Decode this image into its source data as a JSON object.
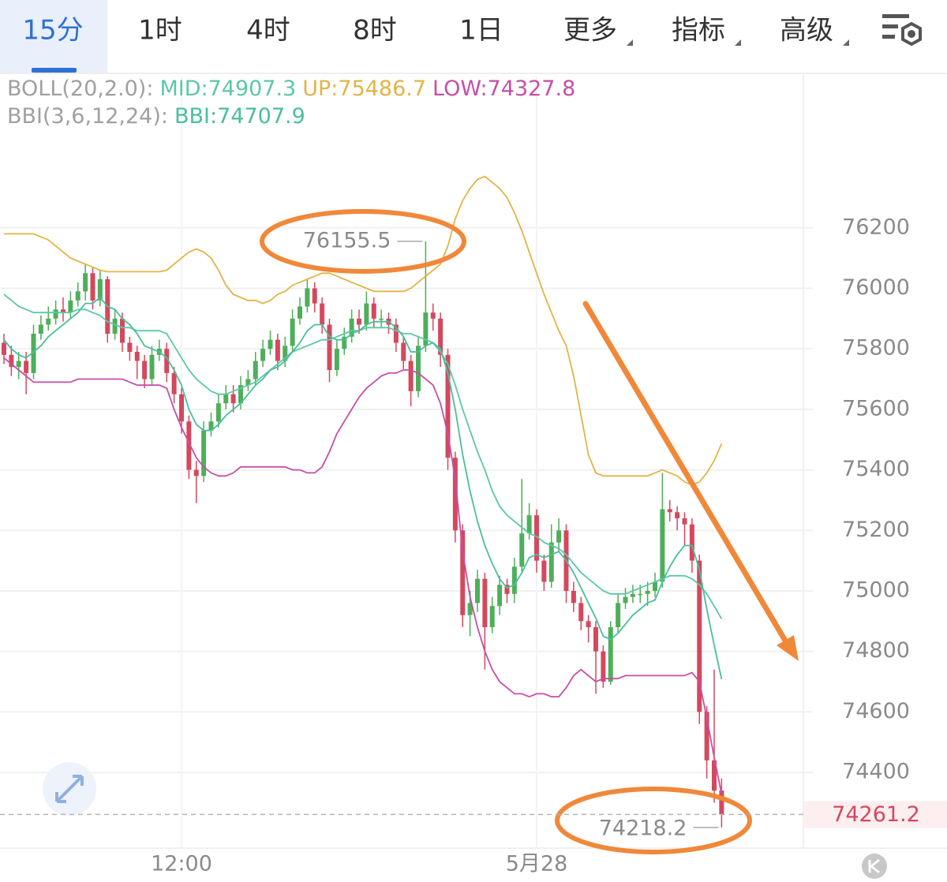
{
  "tabs": [
    "15分",
    "1时",
    "4时",
    "8时",
    "1日",
    "更多",
    "指标",
    "高级"
  ],
  "indicators": {
    "boll": {
      "label": "BOLL(20,2.0):",
      "mid": "MID:74907.3",
      "up": "UP:75486.7",
      "low": "LOW:74327.8"
    },
    "bbi": {
      "label": "BBI(3,6,12,24):",
      "value": "BBI:74707.9"
    }
  },
  "chart_data": {
    "type": "candlestick",
    "categories": [
      null,
      null,
      null,
      null,
      null,
      null,
      null,
      null,
      null,
      null,
      null,
      null,
      null,
      null,
      null,
      null,
      null,
      null,
      null,
      null,
      null,
      null,
      null,
      null,
      "12:00",
      null,
      null,
      null,
      null,
      null,
      null,
      null,
      null,
      null,
      null,
      null,
      null,
      null,
      null,
      null,
      null,
      null,
      null,
      null,
      null,
      null,
      null,
      null,
      null,
      null,
      null,
      null,
      null,
      null,
      null,
      null,
      null,
      null,
      null,
      null,
      null,
      null,
      null,
      null,
      null,
      null,
      null,
      null,
      null,
      null,
      null,
      null,
      "5月28",
      null,
      null,
      null,
      null,
      null,
      null,
      null,
      null,
      null,
      null,
      null,
      null,
      null,
      null,
      null,
      null,
      null,
      null,
      null,
      null,
      null,
      null,
      null,
      null,
      null
    ],
    "open": [
      75820,
      75780,
      75740,
      75760,
      75720,
      75850,
      75880,
      75900,
      75930,
      75920,
      75960,
      75990,
      76050,
      75960,
      76030,
      75850,
      75900,
      75820,
      75790,
      75760,
      75700,
      75780,
      75800,
      75720,
      75650,
      75560,
      75400,
      75380,
      75530,
      75560,
      75620,
      75650,
      75620,
      75680,
      75700,
      75760,
      75800,
      75830,
      75760,
      75810,
      75900,
      75940,
      76000,
      75950,
      75880,
      75730,
      75800,
      75840,
      75900,
      75880,
      75950,
      75900,
      75900,
      75880,
      75820,
      75760,
      75660,
      75810,
      75920,
      75900,
      75780,
      75440,
      75200,
      74920,
      74960,
      75040,
      74880,
      74950,
      75020,
      74990,
      75080,
      75190,
      75250,
      75100,
      75030,
      75160,
      75200,
      75000,
      74960,
      74900,
      74880,
      74800,
      74700,
      74880,
      74960,
      74980,
      74990,
      74990,
      75000,
      75030,
      75270,
      75260,
      75240,
      75220,
      75100,
      74600,
      74440,
      74340
    ],
    "high": [
      75850,
      75810,
      75790,
      75790,
      75880,
      75910,
      75940,
      75960,
      75970,
      75990,
      76020,
      76080,
      76070,
      76060,
      76040,
      75930,
      75920,
      75840,
      75810,
      75780,
      75810,
      75830,
      75820,
      75740,
      75670,
      75580,
      75430,
      75560,
      75590,
      75650,
      75680,
      75680,
      75710,
      75730,
      75790,
      75830,
      75860,
      75850,
      75840,
      75930,
      75970,
      76030,
      76020,
      75970,
      75900,
      75830,
      75870,
      75930,
      75930,
      75990,
      75970,
      75930,
      75920,
      75900,
      75840,
      75780,
      75840,
      76155.5,
      75950,
      75920,
      75800,
      75460,
      75220,
      75000,
      75070,
      75060,
      74980,
      75050,
      75040,
      75110,
      75370,
      75290,
      75270,
      75120,
      75220,
      75240,
      75220,
      75030,
      74980,
      74920,
      74900,
      74820,
      74900,
      74990,
      75010,
      75020,
      75020,
      75030,
      75060,
      75390,
      75300,
      75280,
      75260,
      75240,
      75120,
      74620,
      74740,
      74380
    ],
    "low": [
      75750,
      75710,
      75700,
      75650,
      75700,
      75830,
      75860,
      75880,
      75890,
      75900,
      75940,
      75960,
      75930,
      75940,
      75820,
      75830,
      75790,
      75760,
      75700,
      75670,
      75680,
      75760,
      75690,
      75620,
      75520,
      75370,
      75290,
      75360,
      75510,
      75540,
      75600,
      75590,
      75600,
      75660,
      75680,
      75740,
      75780,
      75730,
      75740,
      75790,
      75880,
      75920,
      75920,
      75850,
      75690,
      75710,
      75780,
      75820,
      75850,
      75860,
      75870,
      75870,
      75850,
      75790,
      75730,
      75610,
      75640,
      75790,
      75860,
      75740,
      75400,
      75160,
      74880,
      74850,
      74930,
      74740,
      74860,
      74920,
      74960,
      74960,
      75060,
      75170,
      75060,
      75000,
      75010,
      75130,
      74960,
      74930,
      74870,
      74830,
      74660,
      74680,
      74690,
      74860,
      74940,
      74960,
      74960,
      74950,
      74980,
      75010,
      75230,
      75200,
      75150,
      75060,
      74560,
      74380,
      74300,
      74218.2
    ],
    "close": [
      75780,
      75740,
      75760,
      75720,
      75850,
      75880,
      75900,
      75930,
      75920,
      75960,
      75990,
      76050,
      75960,
      76030,
      75850,
      75900,
      75820,
      75790,
      75760,
      75700,
      75780,
      75800,
      75720,
      75650,
      75560,
      75400,
      75380,
      75530,
      75560,
      75620,
      75650,
      75620,
      75680,
      75700,
      75760,
      75800,
      75830,
      75760,
      75810,
      75900,
      75940,
      76000,
      75950,
      75880,
      75730,
      75800,
      75840,
      75900,
      75880,
      75950,
      75900,
      75900,
      75880,
      75820,
      75760,
      75660,
      75810,
      75920,
      75900,
      75780,
      75440,
      75200,
      74920,
      74960,
      75040,
      74880,
      74950,
      75020,
      74990,
      75080,
      75190,
      75250,
      75100,
      75030,
      75160,
      75200,
      75000,
      74960,
      74900,
      74880,
      74800,
      74700,
      74880,
      74960,
      74980,
      74990,
      74990,
      75000,
      75030,
      75270,
      75260,
      75240,
      75220,
      75100,
      74600,
      74440,
      74340,
      74261.2
    ],
    "up_color": "#4fae5a",
    "down_color": "#d4485e",
    "series": [
      {
        "name": "UP",
        "color": "#e3b447",
        "values": [
          76180,
          76180,
          76180,
          76180,
          76180,
          76170,
          76160,
          76140,
          76120,
          76100,
          76090,
          76080,
          76070,
          76060,
          76055,
          76055,
          76055,
          76055,
          76055,
          76055,
          76055,
          76055,
          76060,
          76080,
          76100,
          76120,
          76130,
          76120,
          76100,
          76060,
          76010,
          75980,
          75970,
          75960,
          75960,
          75950,
          75960,
          75980,
          75990,
          76010,
          76020,
          76030,
          76040,
          76050,
          76050,
          76040,
          76030,
          76020,
          76010,
          76000,
          75990,
          75990,
          75990,
          75990,
          75990,
          76000,
          76020,
          76040,
          76060,
          76080,
          76140,
          76230,
          76290,
          76330,
          76360,
          76370,
          76350,
          76330,
          76300,
          76250,
          76190,
          76120,
          76050,
          75980,
          75920,
          75860,
          75810,
          75710,
          75580,
          75450,
          75390,
          75380,
          75380,
          75380,
          75380,
          75380,
          75380,
          75380,
          75390,
          75400,
          75390,
          75380,
          75360,
          75350,
          75360,
          75390,
          75430,
          75486.7
        ]
      },
      {
        "name": "MID",
        "color": "#5cc8a6",
        "values": [
          75980,
          75960,
          75940,
          75930,
          75920,
          75920,
          75920,
          75920,
          75920,
          75920,
          75930,
          75930,
          75920,
          75910,
          75890,
          75880,
          75870,
          75870,
          75860,
          75860,
          75860,
          75860,
          75850,
          75810,
          75770,
          75730,
          75700,
          75680,
          75660,
          75650,
          75650,
          75660,
          75670,
          75680,
          75690,
          75710,
          75730,
          75750,
          75770,
          75790,
          75800,
          75810,
          75820,
          75830,
          75830,
          75840,
          75850,
          75860,
          75860,
          75870,
          75870,
          75870,
          75870,
          75860,
          75850,
          75850,
          75840,
          75830,
          75820,
          75790,
          75750,
          75680,
          75600,
          75530,
          75460,
          75400,
          75330,
          75280,
          75250,
          75230,
          75210,
          75190,
          75180,
          75160,
          75150,
          75140,
          75120,
          75090,
          75060,
          75040,
          75020,
          75000,
          74990,
          74990,
          74990,
          75000,
          75010,
          75020,
          75030,
          75040,
          75050,
          75050,
          75050,
          75040,
          75020,
          74990,
          74950,
          74907.3
        ]
      },
      {
        "name": "LOW",
        "color": "#c64fa6",
        "values": [
          75770,
          75750,
          75730,
          75710,
          75690,
          75690,
          75690,
          75690,
          75690,
          75690,
          75700,
          75700,
          75700,
          75700,
          75700,
          75700,
          75700,
          75690,
          75680,
          75680,
          75680,
          75680,
          75670,
          75600,
          75540,
          75490,
          75440,
          75410,
          75390,
          75380,
          75380,
          75390,
          75410,
          75410,
          75410,
          75410,
          75410,
          75410,
          75410,
          75400,
          75400,
          75390,
          75390,
          75410,
          75460,
          75520,
          75560,
          75600,
          75640,
          75670,
          75690,
          75710,
          75720,
          75720,
          75730,
          75730,
          75720,
          75700,
          75680,
          75620,
          75520,
          75370,
          75130,
          74980,
          74880,
          74800,
          74740,
          74700,
          74680,
          74660,
          74660,
          74650,
          74660,
          74660,
          74650,
          74650,
          74680,
          74720,
          74740,
          74720,
          74700,
          74710,
          74710,
          74710,
          74720,
          74720,
          74720,
          74720,
          74720,
          74720,
          74720,
          74720,
          74720,
          74730,
          74700,
          74580,
          74450,
          74327.8
        ]
      },
      {
        "name": "BBI",
        "color": "#49bf9c",
        "values": [
          75830,
          75800,
          75780,
          75770,
          75790,
          75810,
          75840,
          75860,
          75880,
          75900,
          75920,
          75950,
          75950,
          75970,
          75940,
          75930,
          75900,
          75880,
          75850,
          75810,
          75800,
          75790,
          75770,
          75730,
          75680,
          75600,
          75550,
          75530,
          75530,
          75550,
          75580,
          75600,
          75620,
          75650,
          75680,
          75700,
          75730,
          75740,
          75760,
          75790,
          75820,
          75860,
          75880,
          75880,
          75840,
          75830,
          75830,
          75850,
          75860,
          75880,
          75890,
          75890,
          75890,
          75870,
          75840,
          75790,
          75790,
          75810,
          75820,
          75800,
          75720,
          75600,
          75450,
          75330,
          75230,
          75150,
          75090,
          75040,
          75010,
          75020,
          75060,
          75110,
          75120,
          75110,
          75120,
          75130,
          75100,
          75060,
          75010,
          74960,
          74910,
          74850,
          74840,
          74860,
          74890,
          74920,
          74940,
          74960,
          74970,
          75030,
          75080,
          75120,
          75150,
          75150,
          75070,
          74940,
          74820,
          74707.9
        ]
      }
    ],
    "ylim": [
      74150,
      76700
    ],
    "yticks": [
      74400,
      74600,
      74800,
      75000,
      75200,
      75400,
      75600,
      75800,
      76000,
      76200
    ],
    "grid": true
  }
}
